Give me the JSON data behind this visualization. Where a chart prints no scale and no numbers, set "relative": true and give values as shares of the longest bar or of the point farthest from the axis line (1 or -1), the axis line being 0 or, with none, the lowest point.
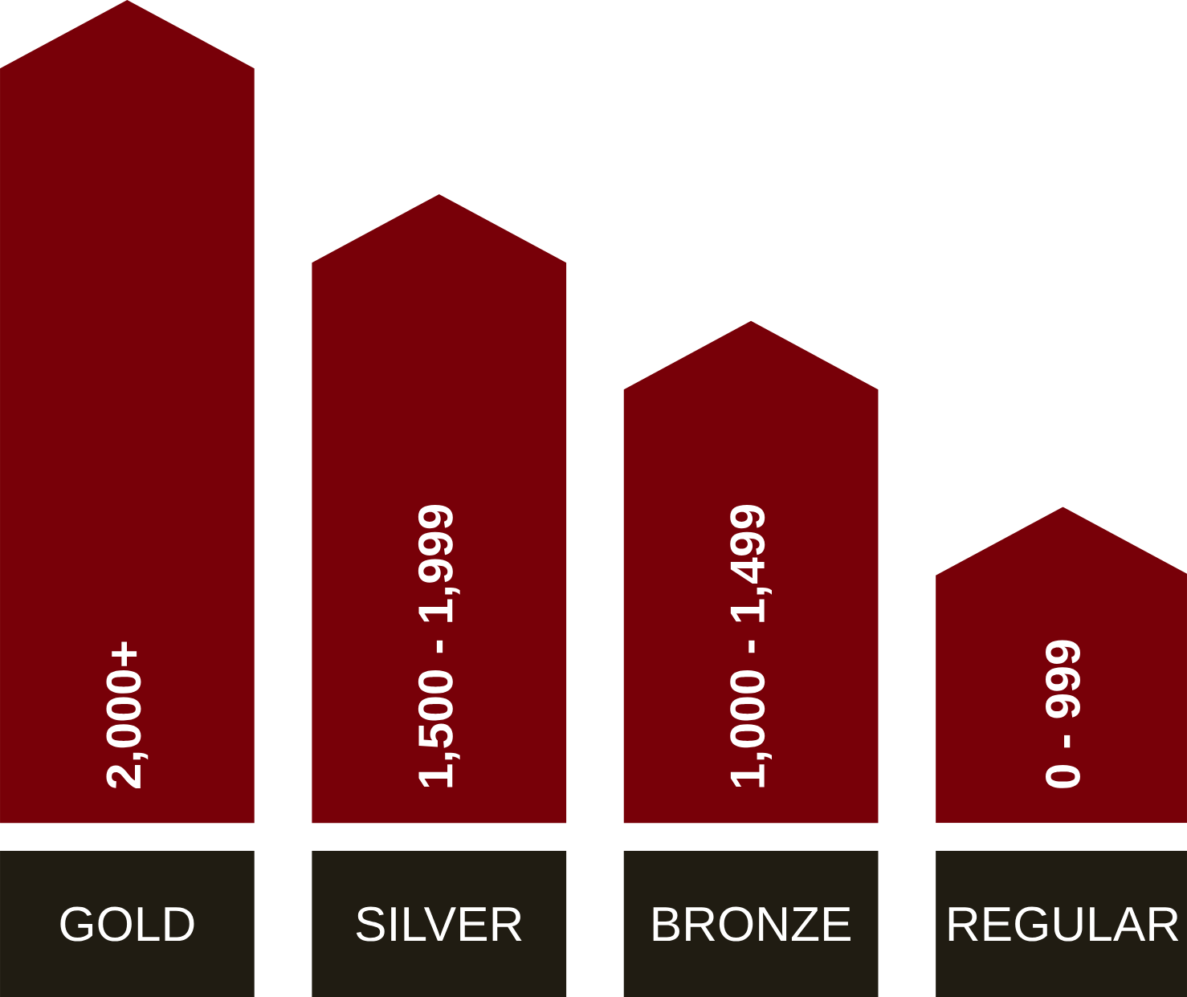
{
  "chart_data": {
    "type": "bar",
    "relative": true,
    "categories": [
      "GOLD",
      "SILVER",
      "BRONZE",
      "REGULAR"
    ],
    "values": [
      1,
      0.764,
      0.61,
      0.384
    ],
    "annotations": [
      "2,000+",
      "1,500 - 1,999",
      "1,000 - 1,499",
      "0 - 999"
    ],
    "color": "#780008"
  }
}
